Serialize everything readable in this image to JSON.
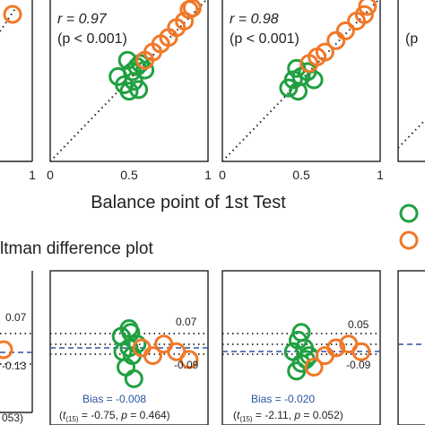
{
  "colors": {
    "orange": "#F07828",
    "green": "#20A040",
    "frame": "#222222",
    "bias_line": "#3050A0",
    "bias_text": "#2A55A0",
    "dotted": "#222222"
  },
  "top_row": {
    "xlabel": "Balance point of 1st Test",
    "xticks": [
      "0",
      "0.5",
      "1"
    ],
    "left_partial_tick": "1",
    "panels": [
      {
        "r_label": "r = 0.97",
        "p_label": "(p < 0.001)"
      },
      {
        "r_label": "r = 0.98",
        "p_label": "(p < 0.001)"
      }
    ],
    "right_partial_text": "(p"
  },
  "bottom_row": {
    "title": "ltman difference plot",
    "left_partial": {
      "upper": "0.07",
      "lower": "-0.13",
      "stat": "053)"
    },
    "panels": [
      {
        "upper": "0.07",
        "lower": "-0.09",
        "bias_label": "Bias = -0.008",
        "stat_label": "(t(15) = -0.75, p = 0.464)"
      },
      {
        "upper": "0.05",
        "lower": "-0.09",
        "bias_label": "Bias = -0.020",
        "stat_label": "(t(15) = -2.11, p = 0.052)"
      }
    ]
  },
  "chart_data": [
    {
      "type": "scatter",
      "title": "",
      "xlabel": "Balance point of 1st Test",
      "ylabel": "",
      "xlim": [
        0,
        1
      ],
      "ylim": [
        0,
        1
      ],
      "xticks": [
        0,
        0.5,
        1
      ],
      "reference_line": "identity (dotted)",
      "annotation": [
        "r = 0.97",
        "(p < 0.001)"
      ],
      "series": [
        {
          "color": "#20A040",
          "x": [
            0.43,
            0.47,
            0.5,
            0.52,
            0.55,
            0.57,
            0.49,
            0.53,
            0.56,
            0.6
          ],
          "y": [
            0.52,
            0.47,
            0.43,
            0.55,
            0.58,
            0.6,
            0.62,
            0.49,
            0.44,
            0.56
          ]
        },
        {
          "color": "#F07828",
          "x": [
            0.6,
            0.65,
            0.7,
            0.75,
            0.8,
            0.85,
            0.88,
            0.9
          ],
          "y": [
            0.62,
            0.67,
            0.72,
            0.76,
            0.82,
            0.86,
            0.93,
            0.94
          ]
        }
      ]
    },
    {
      "type": "scatter",
      "title": "",
      "xlabel": "",
      "ylabel": "",
      "xlim": [
        0,
        1
      ],
      "ylim": [
        0,
        1
      ],
      "xticks": [
        0,
        0.5,
        1
      ],
      "reference_line": "identity (dotted)",
      "annotation": [
        "r = 0.98",
        "(p < 0.001)"
      ],
      "series": [
        {
          "color": "#20A040",
          "x": [
            0.42,
            0.45,
            0.48,
            0.5,
            0.54,
            0.58,
            0.47
          ],
          "y": [
            0.45,
            0.5,
            0.43,
            0.52,
            0.55,
            0.5,
            0.57
          ]
        },
        {
          "color": "#F07828",
          "x": [
            0.55,
            0.6,
            0.65,
            0.72,
            0.78,
            0.85,
            0.9,
            0.92
          ],
          "y": [
            0.6,
            0.64,
            0.67,
            0.74,
            0.8,
            0.86,
            0.9,
            0.95
          ]
        }
      ]
    },
    {
      "type": "scatter",
      "title": "",
      "xlabel": "",
      "ylabel": "",
      "ylim": [
        -0.2,
        0.2
      ],
      "reference_lines": {
        "bias": -0.008,
        "upper": 0.07,
        "lower": -0.09
      },
      "annotation": [
        "Bias = -0.008",
        "(t(15) = -0.75, p = 0.464)"
      ],
      "series": [
        {
          "color": "#20A040",
          "x": [
            0.45,
            0.5,
            0.52,
            0.48,
            0.55,
            0.5,
            0.53,
            0.46,
            0.51
          ],
          "y": [
            0.03,
            0.0,
            -0.02,
            -0.05,
            0.01,
            0.05,
            -0.08,
            -0.01,
            0.04
          ]
        },
        {
          "color": "#F07828",
          "x": [
            0.58,
            0.65,
            0.72,
            0.8,
            0.88
          ],
          "y": [
            0.0,
            -0.02,
            0.01,
            -0.01,
            -0.03
          ]
        }
      ]
    },
    {
      "type": "scatter",
      "title": "",
      "xlabel": "",
      "ylabel": "",
      "ylim": [
        -0.2,
        0.2
      ],
      "reference_lines": {
        "bias": -0.02,
        "upper": 0.05,
        "lower": -0.09
      },
      "annotation": [
        "Bias = -0.020",
        "(t(15) = -2.11, p = 0.052)"
      ],
      "series": [
        {
          "color": "#20A040",
          "x": [
            0.45,
            0.48,
            0.5,
            0.52,
            0.47,
            0.53,
            0.5,
            0.55
          ],
          "y": [
            -0.01,
            0.02,
            -0.04,
            0.0,
            -0.06,
            -0.03,
            0.04,
            -0.02
          ]
        },
        {
          "color": "#F07828",
          "x": [
            0.58,
            0.65,
            0.72,
            0.8,
            0.88
          ],
          "y": [
            -0.05,
            -0.02,
            0.0,
            0.01,
            -0.01
          ]
        }
      ]
    }
  ]
}
